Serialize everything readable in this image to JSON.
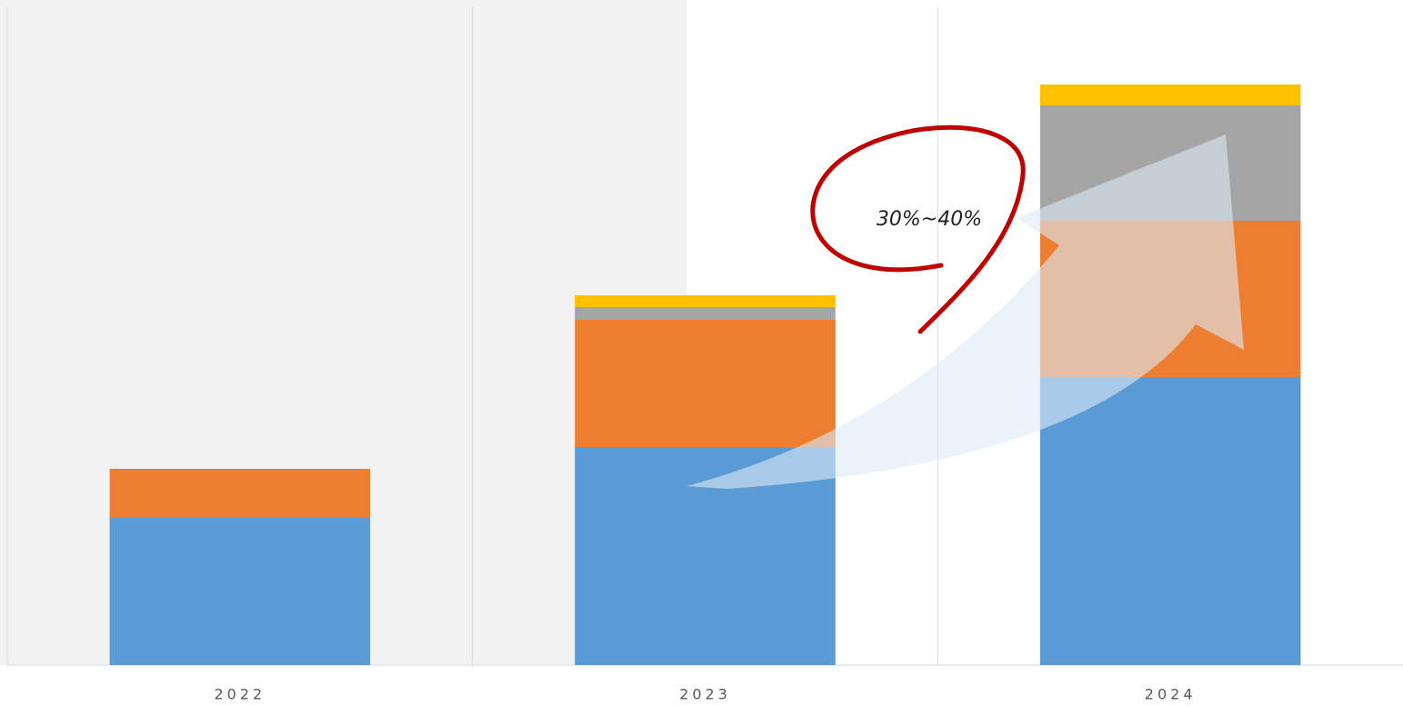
{
  "chart_data": {
    "type": "bar",
    "stacked": true,
    "categories": [
      "2022",
      "2023",
      "2024"
    ],
    "series": [
      {
        "color": "#5b9bd5",
        "values": [
          162,
          240,
          317
        ]
      },
      {
        "color": "#ed7d31",
        "values": [
          54,
          140,
          172
        ]
      },
      {
        "color": "#a5a5a5",
        "values": [
          0,
          14,
          127
        ]
      },
      {
        "color": "#ffc000",
        "values": [
          0,
          13,
          23
        ]
      }
    ],
    "ylim": [
      0,
      724
    ],
    "annotation": "30%~40%"
  }
}
